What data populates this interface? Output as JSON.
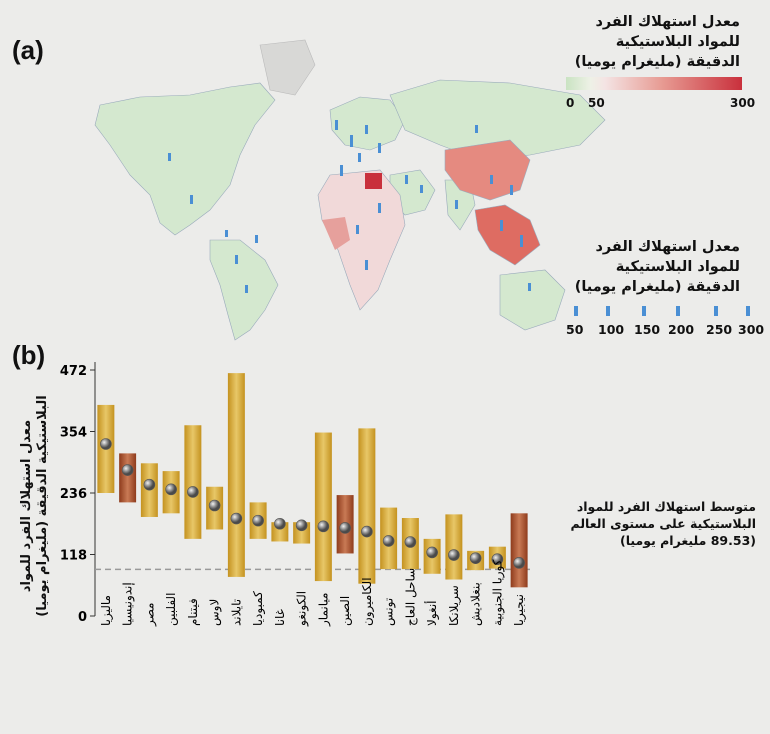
{
  "panels": {
    "a": "(a)",
    "b": "(b)"
  },
  "legend_color": {
    "title_lines": [
      "معدل استهلاك الفرد",
      "للمواد البلاستيكية",
      "الدقيقة (مليغرام يوميا)"
    ],
    "ticks": [
      "0",
      "50",
      "300"
    ],
    "colors": {
      "low": "#c9e3c2",
      "mid": "#f4e4e4",
      "high": "#c9303c"
    }
  },
  "legend_bars": {
    "title_lines": [
      "معدل استهلاك الفرد",
      "للمواد البلاستيكية",
      "الدقيقة (مليغرام يوميا)"
    ],
    "values": [
      "50",
      "100",
      "150",
      "200",
      "250",
      "300"
    ],
    "color": "#4a8fd4"
  },
  "note": {
    "text": "متوسط استهلاك الفرد للمواد البلاستيكية على مستوى العالم (89.53 مليغرام يوميا)"
  },
  "chart_data": {
    "type": "bar",
    "ylabel": "معدل استهلاك الفرد للمواد البلاستيكية الدقيقة (مليغرام يوميا)",
    "yticks": [
      0,
      118,
      236,
      354,
      472
    ],
    "ylim": [
      0,
      472
    ],
    "reference_line": 89.53,
    "categories": [
      "ماليزيا",
      "إندونيسيا",
      "مصر",
      "الفلبين",
      "فيتنام",
      "لاوس",
      "تايلاند",
      "كمبوديا",
      "غانا",
      "الكونغو",
      "ميانمار",
      "الصين",
      "الكاميرون",
      "تونس",
      "ساحل العاج",
      "أنغولا",
      "سريلانكا",
      "بنغلاديش",
      "كوريا الجنوبية",
      "نيجيريا"
    ],
    "series": [
      {
        "name": "range_low",
        "values": [
          236,
          218,
          190,
          197,
          148,
          166,
          75,
          148,
          143,
          139,
          67,
          120,
          62,
          90,
          90,
          81,
          70,
          88,
          91,
          55
        ]
      },
      {
        "name": "range_high",
        "values": [
          405,
          312,
          293,
          278,
          366,
          248,
          466,
          218,
          180,
          180,
          352,
          232,
          360,
          208,
          188,
          148,
          195,
          125,
          133,
          197
        ]
      },
      {
        "name": "mean",
        "values": [
          330,
          280,
          252,
          243,
          238,
          212,
          187,
          183,
          177,
          174,
          172,
          169,
          162,
          144,
          142,
          122,
          117,
          111,
          109,
          102
        ]
      }
    ],
    "bar_colors": [
      "gold",
      "brown",
      "gold",
      "gold",
      "gold",
      "gold",
      "gold",
      "gold",
      "gold",
      "gold",
      "gold",
      "brown",
      "gold",
      "gold",
      "gold",
      "gold",
      "gold",
      "gold",
      "gold",
      "brown"
    ],
    "colors": {
      "gold": "#c4921f",
      "gold_light": "#e8c768",
      "brown": "#8e3b1c",
      "brown_light": "#c97a55"
    }
  }
}
